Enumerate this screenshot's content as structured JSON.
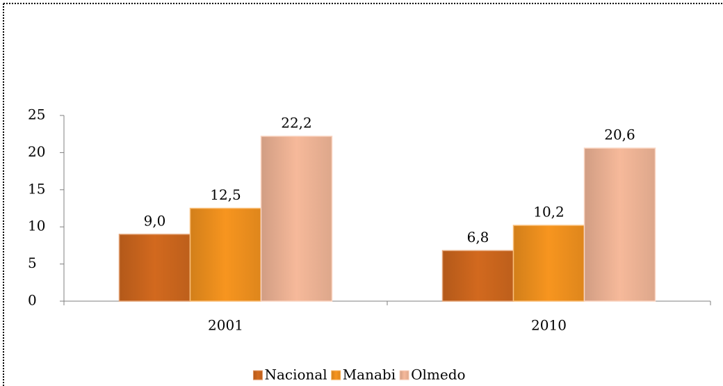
{
  "chart_data": {
    "type": "bar",
    "categories": [
      "2001",
      "2010"
    ],
    "series": [
      {
        "name": "Nacional",
        "color": "#d2691e",
        "values": [
          9.0,
          6.8
        ],
        "value_labels": [
          "9,0",
          "6,8"
        ]
      },
      {
        "name": "Manabi",
        "color": "#f7951f",
        "values": [
          12.5,
          10.2
        ],
        "value_labels": [
          "12,5",
          "10,2"
        ]
      },
      {
        "name": "Olmedo",
        "color": "#f6b99a",
        "values": [
          22.2,
          20.6
        ],
        "value_labels": [
          "22,2",
          "20,6"
        ]
      }
    ],
    "ylim": [
      0,
      25
    ],
    "yticks": [
      0,
      5,
      10,
      15,
      20,
      25
    ],
    "grid": false,
    "legend": "bottom"
  }
}
